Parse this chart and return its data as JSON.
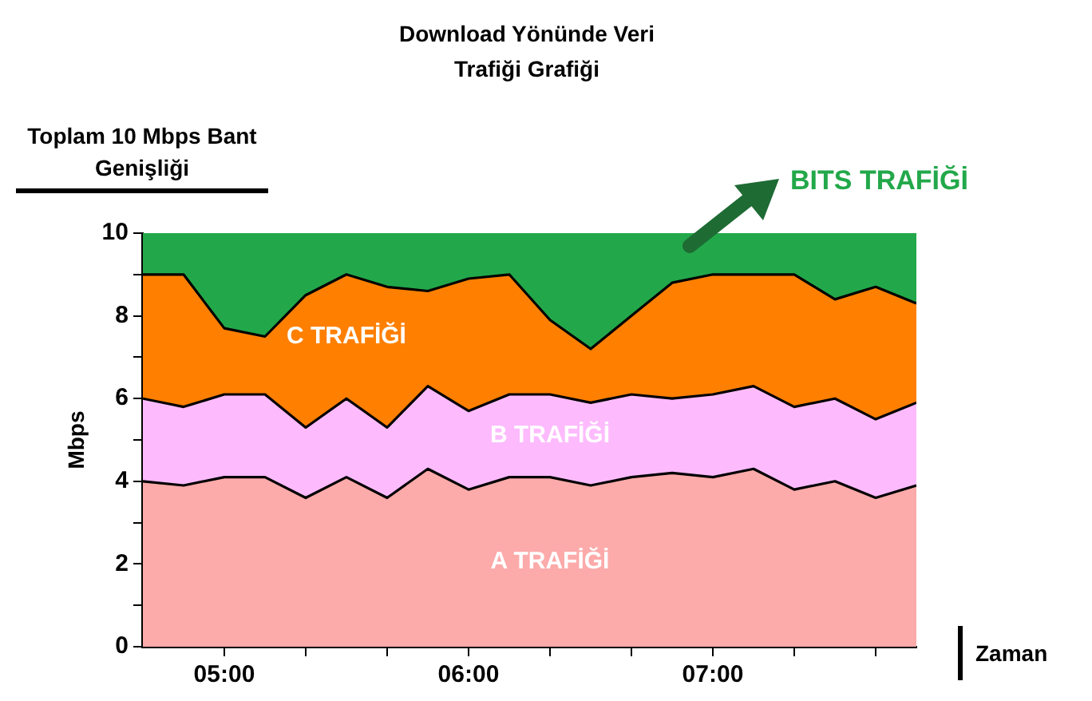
{
  "chart_data": {
    "type": "area",
    "title": "Download Yönünde Veri Trafiği Grafiği",
    "xlabel": "Zaman",
    "ylabel": "Mbps",
    "annotations": [
      "Toplam 10 Mbps Bant Genişliği"
    ],
    "x": [
      4.6667,
      4.8333,
      5,
      5.1667,
      5.3333,
      5.5,
      5.6667,
      5.8333,
      6,
      6.1667,
      6.3333,
      6.5,
      6.6667,
      6.8333,
      7,
      7.1667,
      7.3333,
      7.5,
      7.6667,
      7.8333
    ],
    "xlim": [
      4.6667,
      7.8333
    ],
    "xticks": [
      {
        "value": 5,
        "label": "05:00"
      },
      {
        "value": 5.3333,
        "label": null
      },
      {
        "value": 5.6667,
        "label": null
      },
      {
        "value": 6,
        "label": "06:00"
      },
      {
        "value": 6.3333,
        "label": null
      },
      {
        "value": 6.6667,
        "label": null
      },
      {
        "value": 7,
        "label": "07:00"
      },
      {
        "value": 7.3333,
        "label": null
      },
      {
        "value": 7.6667,
        "label": null
      }
    ],
    "ylim": [
      0,
      10
    ],
    "yticks": [
      0,
      {
        "value": 1,
        "label": null
      },
      2,
      {
        "value": 3,
        "label": null
      },
      4,
      {
        "value": 5,
        "label": null
      },
      6,
      {
        "value": 7,
        "label": null
      },
      8,
      {
        "value": 9,
        "label": null
      },
      10
    ],
    "stacked": true,
    "series": [
      {
        "name": "A TRAFİĞİ",
        "color": "#fcaaaa",
        "values": [
          4.0,
          3.9,
          4.1,
          4.1,
          3.6,
          4.1,
          3.6,
          4.3,
          3.8,
          4.1,
          4.1,
          3.9,
          4.1,
          4.2,
          4.1,
          4.3,
          3.8,
          4.0,
          3.6,
          3.9
        ]
      },
      {
        "name": "B TRAFİĞİ",
        "color": "#fdbbfd",
        "values": [
          2.0,
          1.9,
          2.0,
          2.0,
          1.7,
          1.9,
          1.7,
          2.0,
          1.9,
          2.0,
          2.0,
          2.0,
          2.0,
          1.8,
          2.0,
          2.0,
          2.0,
          2.0,
          1.9,
          2.0
        ]
      },
      {
        "name": "C TRAFİĞİ",
        "color": "#ff7f00",
        "values": [
          3.0,
          3.2,
          1.6,
          1.4,
          3.2,
          3.0,
          3.4,
          2.3,
          3.2,
          2.9,
          1.8,
          1.3,
          1.9,
          2.8,
          2.9,
          2.7,
          3.2,
          2.4,
          3.2,
          2.4
        ]
      },
      {
        "name": "BITS TRAFİĞİ",
        "color": "#22a84a",
        "values": [
          1.0,
          1.0,
          2.3,
          2.5,
          1.5,
          1.0,
          1.3,
          1.4,
          1.1,
          1.0,
          2.1,
          2.8,
          2.0,
          1.2,
          1.0,
          1.0,
          1.0,
          1.6,
          1.3,
          1.7
        ]
      }
    ]
  }
}
